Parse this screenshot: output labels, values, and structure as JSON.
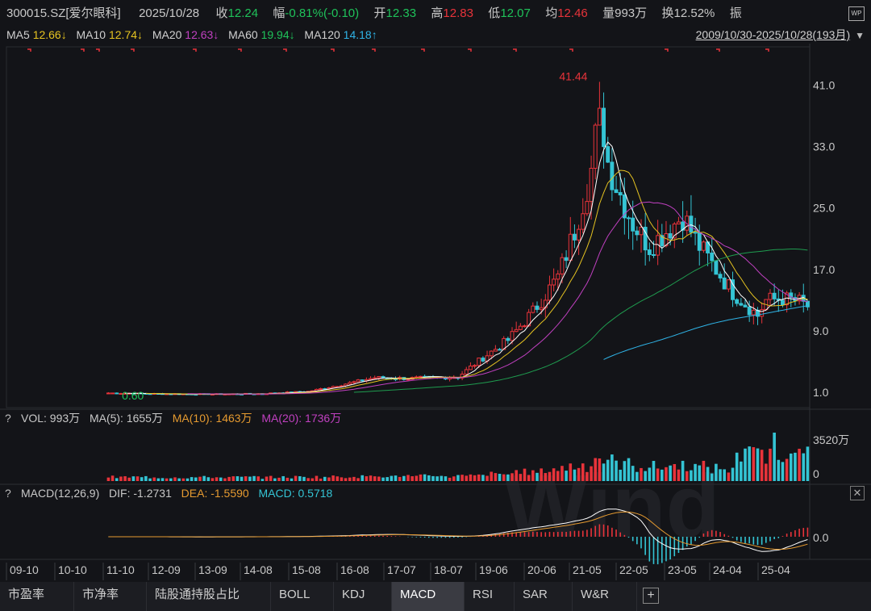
{
  "info": {
    "code": "300015.SZ[爱尔眼科]",
    "date": "2025/10/28",
    "close_label": "收",
    "close": "12.24",
    "change_label": "幅",
    "change": "-0.81%(-0.10)",
    "open_label": "开",
    "open": "12.33",
    "high_label": "高",
    "high": "12.83",
    "low_label": "低",
    "low": "12.07",
    "avg_label": "均",
    "avg": "12.46",
    "vol_label": "量",
    "vol": "993万",
    "turnover_label": "换",
    "turnover": "12.52%",
    "amp_label": "振",
    "logo_icon": "wp-icon"
  },
  "ma": {
    "ma5_label": "MA5",
    "ma5": "12.66↓",
    "ma10_label": "MA10",
    "ma10": "12.74↓",
    "ma20_label": "MA20",
    "ma20": "12.63↓",
    "ma60_label": "MA60",
    "ma60": "19.94↓",
    "ma120_label": "MA120",
    "ma120": "14.18↑",
    "range": "2009/10/30-2025/10/28(193月)",
    "range_icon": "triangle-down-icon"
  },
  "colors": {
    "up": "#e8333a",
    "down": "#34c4d4",
    "ma5": "#ffffff",
    "ma10": "#e5c321",
    "ma20": "#c040c0",
    "ma60": "#1f9c4f",
    "ma120": "#2fb3e6"
  },
  "chart_data": [
    {
      "type": "candlestick",
      "title": "",
      "y_ticks": [
        "41.0",
        "33.0",
        "25.0",
        "17.0",
        "9.0",
        "1.0"
      ],
      "y_tick_values": [
        41,
        33,
        25,
        17,
        9,
        1
      ],
      "ylim": [
        -1,
        46
      ],
      "x_ticks": [
        "09-10",
        "10-10",
        "11-10",
        "12-09",
        "13-09",
        "14-08",
        "15-08",
        "16-08",
        "17-07",
        "18-07",
        "19-06",
        "20-06",
        "21-05",
        "22-05",
        "23-05",
        "24-04",
        "25-04"
      ],
      "annotations": [
        {
          "text": "41.44",
          "value": 41.44,
          "month_index": 118
        },
        {
          "text": "0.60",
          "value": 0.6,
          "month_index": 4
        }
      ],
      "close_series_anchors": [
        [
          0,
          0.9
        ],
        [
          12,
          0.8
        ],
        [
          24,
          0.75
        ],
        [
          36,
          0.8
        ],
        [
          48,
          1.1
        ],
        [
          58,
          2.2
        ],
        [
          64,
          2.9
        ],
        [
          72,
          2.8
        ],
        [
          84,
          3.0
        ],
        [
          90,
          5.5
        ],
        [
          96,
          7.8
        ],
        [
          102,
          11.5
        ],
        [
          108,
          16.0
        ],
        [
          112,
          22.0
        ],
        [
          116,
          30.0
        ],
        [
          118,
          38.0
        ],
        [
          120,
          31.0
        ],
        [
          122,
          28.0
        ],
        [
          126,
          23.0
        ],
        [
          130,
          20.0
        ],
        [
          134,
          22.0
        ],
        [
          138,
          24.0
        ],
        [
          142,
          20.0
        ],
        [
          146,
          17.0
        ],
        [
          150,
          14.0
        ],
        [
          154,
          12.0
        ],
        [
          156,
          11.0
        ],
        [
          158,
          13.0
        ],
        [
          162,
          13.2
        ],
        [
          166,
          12.8
        ],
        [
          168,
          12.2
        ]
      ]
    },
    {
      "type": "bar",
      "title": "",
      "label": "VOL: 993万",
      "ma5_label": "MA(5): 1655万",
      "ma10_label": "MA(10): 1463万",
      "ma20_label": "MA(20): 1736万",
      "y_ticks": [
        "3520万",
        "0"
      ]
    },
    {
      "type": "line",
      "title": "",
      "label": "MACD(12,26,9)",
      "dif_label": "DIF: -1.2731",
      "dea_label": "DEA: -1.5590",
      "macd_label": "MACD: 0.5718",
      "y_ticks": [
        "0.0"
      ]
    }
  ],
  "panels": {
    "close_icon": "close-icon",
    "help_icon": "question-icon"
  },
  "tabs": [
    "市盈率",
    "市净率",
    "陆股通持股占比",
    "BOLL",
    "KDJ",
    "MACD",
    "RSI",
    "SAR",
    "W&R"
  ],
  "active_tab": "MACD",
  "add_tab_icon": "plus-icon"
}
